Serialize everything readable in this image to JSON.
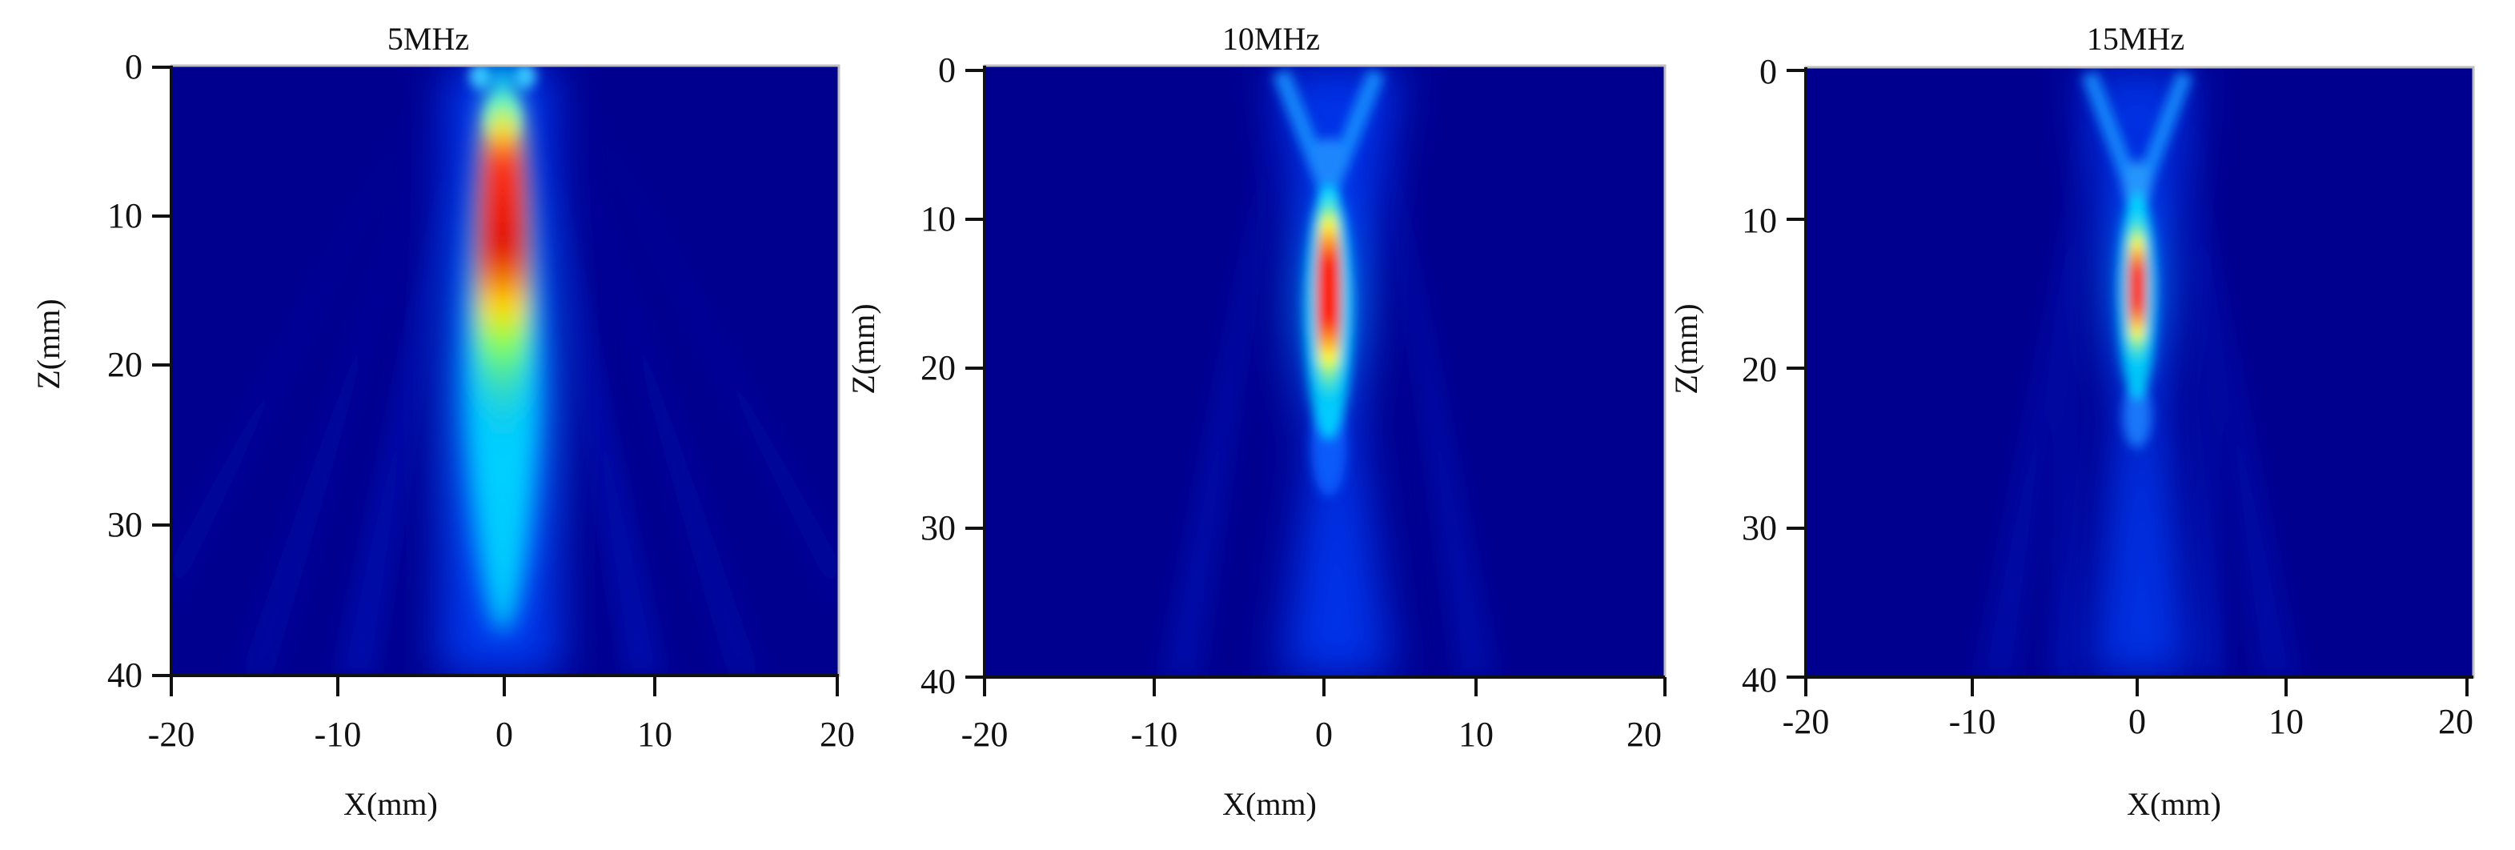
{
  "figure": {
    "colormap": "jet",
    "colors": {
      "background": "#00008F",
      "axis": "#111111"
    }
  },
  "chart_data": [
    {
      "type": "heatmap",
      "title": "5MHz",
      "xlabel": "X(mm)",
      "ylabel": "Z(mm)",
      "xlim": [
        -20,
        20
      ],
      "ylim": [
        40,
        0
      ],
      "xticks": [
        "-20",
        "-10",
        "0",
        "10",
        "20"
      ],
      "yticks": [
        "0",
        "10",
        "20",
        "30",
        "40"
      ],
      "focus": {
        "x": 0,
        "z": 14,
        "peak_z_range": [
          6,
          24
        ]
      },
      "beam_width_at_focus_mm": 4.5
    },
    {
      "type": "heatmap",
      "title": "10MHz",
      "xlabel": "X(mm)",
      "ylabel": "Z(mm)",
      "xlim": [
        -20,
        20
      ],
      "ylim": [
        40,
        0
      ],
      "xticks": [
        "-20",
        "-10",
        "0",
        "10",
        "20"
      ],
      "yticks": [
        "0",
        "10",
        "20",
        "30",
        "40"
      ],
      "focus": {
        "x": 0.5,
        "z": 14.5,
        "peak_z_range": [
          9,
          21
        ]
      },
      "beam_width_at_focus_mm": 2
    },
    {
      "type": "heatmap",
      "title": "15MHz",
      "xlabel": "X(mm)",
      "ylabel": "Z(mm)",
      "xlim": [
        -20,
        20
      ],
      "ylim": [
        40,
        0
      ],
      "xticks": [
        "-20",
        "-10",
        "0",
        "10",
        "20"
      ],
      "yticks": [
        "0",
        "10",
        "20",
        "30",
        "40"
      ],
      "focus": {
        "x": 0,
        "z": 15,
        "peak_z_range": [
          11,
          19
        ]
      },
      "beam_width_at_focus_mm": 1.5
    }
  ]
}
